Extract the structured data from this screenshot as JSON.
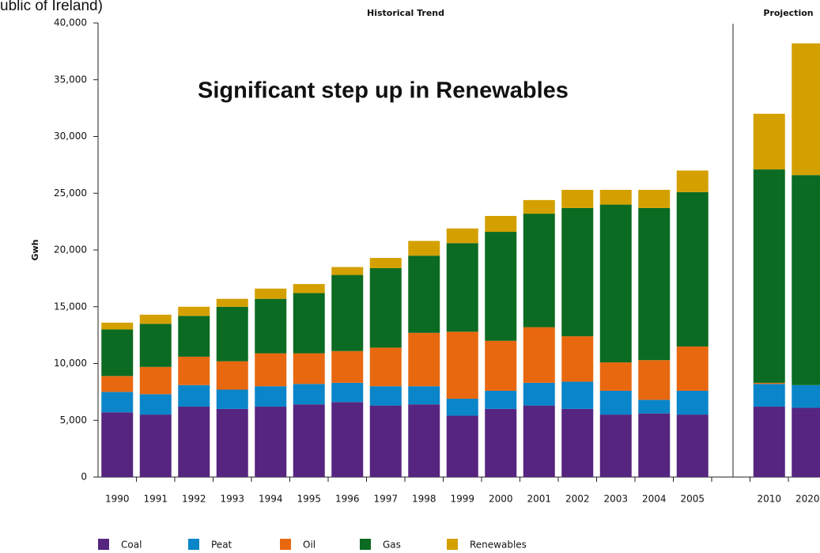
{
  "chart_data": {
    "type": "stacked_bar",
    "subtitle": "ublic of Ireland)",
    "annotations": [
      "Historical Trend",
      "Projection",
      "Significant step up in Renewables"
    ],
    "y_label": "Gwh",
    "categories": [
      "1990",
      "1991",
      "1992",
      "1993",
      "1994",
      "1995",
      "1996",
      "1997",
      "1998",
      "1999",
      "2000",
      "2001",
      "2002",
      "2003",
      "2004",
      "2005",
      null,
      "2010",
      "2020"
    ],
    "series": [
      {
        "name": "Coal",
        "color": "#55257f",
        "values": [
          5700,
          5500,
          6200,
          6000,
          6200,
          6400,
          6600,
          6300,
          6400,
          5400,
          6000,
          6300,
          6000,
          5500,
          5600,
          5500,
          null,
          6200,
          6100
        ]
      },
      {
        "name": "Peat",
        "color": "#0a85c9",
        "values": [
          1800,
          1800,
          1900,
          1700,
          1800,
          1800,
          1700,
          1700,
          1600,
          1500,
          1600,
          2000,
          2400,
          2100,
          1200,
          2100,
          null,
          2000,
          2000
        ]
      },
      {
        "name": "Oil",
        "color": "#e8680f",
        "values": [
          1400,
          2400,
          2500,
          2500,
          2900,
          2700,
          2800,
          3400,
          4700,
          5900,
          4400,
          4900,
          4000,
          2500,
          3500,
          3900,
          null,
          100,
          0
        ]
      },
      {
        "name": "Gas",
        "color": "#0b6b22",
        "values": [
          4100,
          3800,
          3600,
          4800,
          4800,
          5300,
          6700,
          7000,
          6800,
          7800,
          9600,
          10000,
          11300,
          13900,
          13400,
          13600,
          null,
          18800,
          18500
        ]
      },
      {
        "name": "Renewables",
        "color": "#d4a000",
        "values": [
          600,
          800,
          800,
          700,
          900,
          800,
          700,
          900,
          1300,
          1300,
          1400,
          1200,
          1600,
          1300,
          1600,
          1900,
          null,
          4900,
          11600
        ]
      }
    ],
    "ylim": [
      0,
      40000
    ],
    "yticks": [
      0,
      {
        "value": 5000,
        "label": "5,000"
      },
      {
        "value": 10000,
        "label": "10,000"
      },
      {
        "value": 15000,
        "label": "15,000"
      },
      {
        "value": 20000,
        "label": "20,000"
      },
      {
        "value": 25000,
        "label": "25,000"
      },
      {
        "value": 30000,
        "label": "30,000"
      },
      {
        "value": 35000,
        "label": "35,000"
      },
      {
        "value": 40000,
        "label": "40,000"
      }
    ],
    "grid": false,
    "legend": "bottom"
  }
}
